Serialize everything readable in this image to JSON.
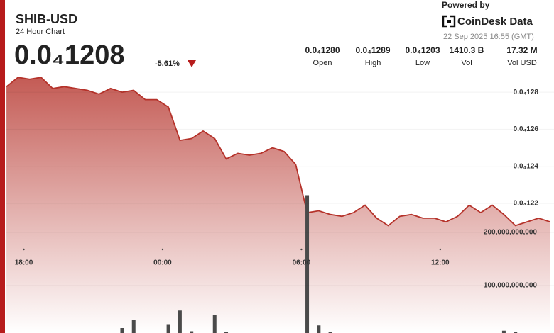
{
  "header": {
    "symbol": "SHIB-USD",
    "subtitle": "24 Hour Chart",
    "price": "0.0₄1208",
    "change": "-5.61%",
    "powered_by": "Powered by",
    "brand": "CoinDesk Data",
    "timestamp": "22 Sep 2025 16:55 (GMT)"
  },
  "stats": [
    {
      "value": "0.0₄1280",
      "label": "Open"
    },
    {
      "value": "0.0₄1289",
      "label": "High"
    },
    {
      "value": "0.0₄1203",
      "label": "Low"
    },
    {
      "value": "1410.3 B",
      "label": "Vol"
    },
    {
      "value": "17.32 M",
      "label": "Vol USD"
    }
  ],
  "chart_data": {
    "type": "line",
    "x": [
      "17:15",
      "17:45",
      "18:15",
      "18:45",
      "19:15",
      "19:45",
      "20:15",
      "20:45",
      "21:15",
      "21:45",
      "22:15",
      "22:45",
      "23:15",
      "23:45",
      "00:15",
      "00:45",
      "01:15",
      "01:45",
      "02:15",
      "02:45",
      "03:15",
      "03:45",
      "04:15",
      "04:45",
      "05:15",
      "05:45",
      "06:15",
      "06:45",
      "07:15",
      "07:45",
      "08:15",
      "08:45",
      "09:15",
      "09:45",
      "10:15",
      "10:45",
      "11:15",
      "11:45",
      "12:15",
      "12:45",
      "13:15",
      "13:45",
      "14:15",
      "14:45",
      "15:15",
      "15:45",
      "16:15",
      "16:45"
    ],
    "xlim": [
      "17:13",
      "16:55"
    ],
    "xticks": [
      "18:00",
      "00:00",
      "06:00",
      "12:00"
    ],
    "series": [
      {
        "type": "line",
        "color": "#b5322a",
        "values": [
          1.283e-05,
          1.288e-05,
          1.287e-05,
          1.288e-05,
          1.282e-05,
          1.283e-05,
          1.282e-05,
          1.281e-05,
          1.279e-05,
          1.282e-05,
          1.28e-05,
          1.281e-05,
          1.276e-05,
          1.276e-05,
          1.272e-05,
          1.254e-05,
          1.255e-05,
          1.259e-05,
          1.255e-05,
          1.244e-05,
          1.247e-05,
          1.246e-05,
          1.247e-05,
          1.25e-05,
          1.248e-05,
          1.241e-05,
          1.215e-05,
          1.216e-05,
          1.214e-05,
          1.213e-05,
          1.215e-05,
          1.219e-05,
          1.212e-05,
          1.208e-05,
          1.213e-05,
          1.214e-05,
          1.212e-05,
          1.212e-05,
          1.21e-05,
          1.213e-05,
          1.219e-05,
          1.215e-05,
          1.219e-05,
          1.214e-05,
          1.208e-05,
          1.21e-05,
          1.212e-05,
          1.21e-05
        ]
      },
      {
        "type": "bar",
        "axis": "y2",
        "color": "#4a4a4a",
        "values": [
          3000000000,
          4000000000,
          3000000000,
          2000000000,
          3000000000,
          2000000000,
          3000000000,
          6000000000,
          4000000000,
          3000000000,
          20000000000,
          35000000000,
          4000000000,
          3000000000,
          26000000000,
          53000000000,
          14000000000,
          6000000000,
          45000000000,
          12000000000,
          8000000000,
          5000000000,
          4000000000,
          3000000000,
          4000000000,
          10000000000,
          270000000000,
          25000000000,
          12000000000,
          10000000000,
          6000000000,
          5000000000,
          4000000000,
          3000000000,
          5000000000,
          4000000000,
          3000000000,
          6000000000,
          5000000000,
          4000000000,
          3000000000,
          6000000000,
          4000000000,
          15000000000,
          12000000000,
          6000000000,
          4000000000,
          5000000000
        ]
      }
    ],
    "ylim": [
      1.15e-05,
      1.29e-05
    ],
    "yticks": [
      {
        "value": 1.22e-05,
        "label": "0.0₄122"
      },
      {
        "value": 1.24e-05,
        "label": "0.0₄124"
      },
      {
        "value": 1.26e-05,
        "label": "0.0₄126"
      },
      {
        "value": 1.28e-05,
        "label": "0.0₄128"
      }
    ],
    "y2lim": [
      0,
      500000000000
    ],
    "y2ticks": [
      {
        "value": 100000000000,
        "label": "100,000,000,000"
      },
      {
        "value": 200000000000,
        "label": "200,000,000,000"
      }
    ]
  }
}
